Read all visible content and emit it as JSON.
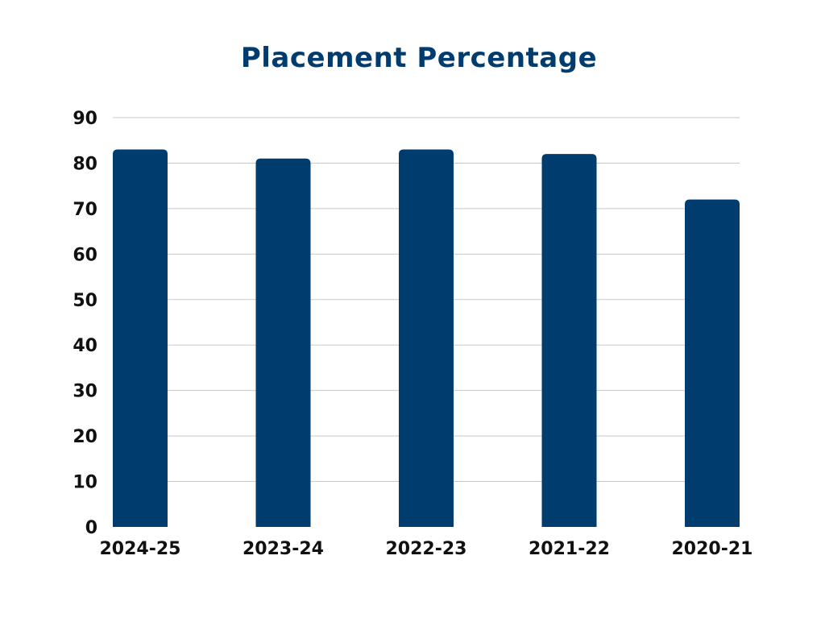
{
  "chart_data": {
    "type": "bar",
    "title": "Placement Percentage",
    "categories": [
      "2024-25",
      "2023-24",
      "2022-23",
      "2021-22",
      "2020-21"
    ],
    "values": [
      83,
      81,
      83,
      82,
      72
    ],
    "ylim": [
      0,
      90
    ],
    "yticks": [
      0,
      10,
      20,
      30,
      40,
      50,
      60,
      70,
      80,
      90
    ],
    "grid": true,
    "legend": "none",
    "bar_color": "#003d6e",
    "grid_color": "#c8c8c8",
    "xlabel": "",
    "ylabel": ""
  }
}
